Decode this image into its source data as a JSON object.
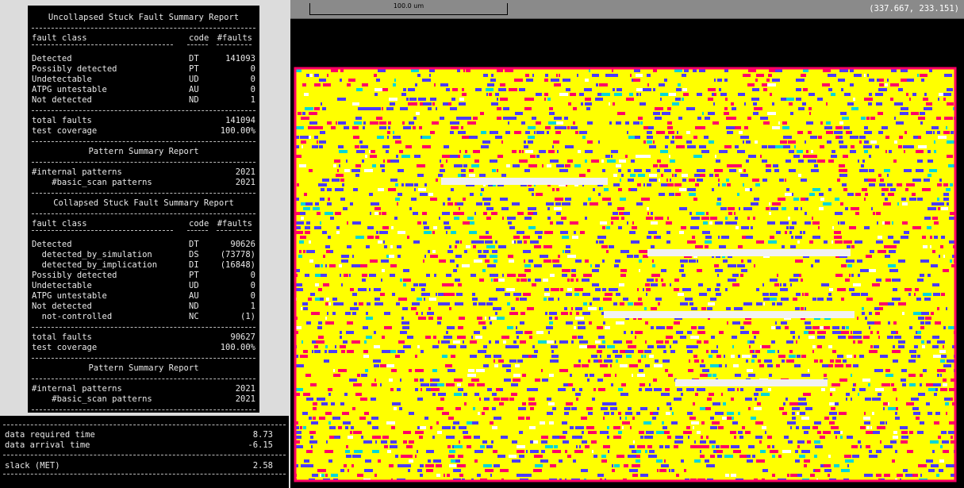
{
  "report": {
    "uncollapsed_title": "Uncollapsed Stuck Fault Summary Report",
    "header": {
      "fault_class": "fault class",
      "code": "code",
      "faults": "#faults"
    },
    "uncollapsed_rows": [
      {
        "label": "Detected",
        "code": "DT",
        "value": "141093"
      },
      {
        "label": "Possibly detected",
        "code": "PT",
        "value": "0"
      },
      {
        "label": "Undetectable",
        "code": "UD",
        "value": "0"
      },
      {
        "label": "ATPG untestable",
        "code": "AU",
        "value": "0"
      },
      {
        "label": "Not detected",
        "code": "ND",
        "value": "1"
      }
    ],
    "uncollapsed_totals": [
      {
        "label": "total faults",
        "value": "141094"
      },
      {
        "label": "test coverage",
        "value": "100.00%"
      }
    ],
    "pattern_title_1": "Pattern Summary Report",
    "patterns_1": [
      {
        "label": "#internal patterns",
        "value": "2021"
      },
      {
        "label": "    #basic_scan patterns",
        "value": "2021"
      }
    ],
    "collapsed_title": "Collapsed Stuck Fault Summary Report",
    "collapsed_rows": [
      {
        "label": "Detected",
        "code": "DT",
        "value": "90626"
      },
      {
        "label": "  detected_by_simulation",
        "code": "DS",
        "value": "(73778)"
      },
      {
        "label": "  detected_by_implication",
        "code": "DI",
        "value": "(16848)"
      },
      {
        "label": "Possibly detected",
        "code": "PT",
        "value": "0"
      },
      {
        "label": "Undetectable",
        "code": "UD",
        "value": "0"
      },
      {
        "label": "ATPG untestable",
        "code": "AU",
        "value": "0"
      },
      {
        "label": "Not detected",
        "code": "ND",
        "value": "1"
      },
      {
        "label": "  not-controlled",
        "code": "NC",
        "value": "(1)"
      }
    ],
    "collapsed_totals": [
      {
        "label": "total faults",
        "value": "90627"
      },
      {
        "label": "test coverage",
        "value": "100.00%"
      }
    ],
    "pattern_title_2": "Pattern Summary Report",
    "patterns_2": [
      {
        "label": "#internal patterns",
        "value": "2021"
      },
      {
        "label": "    #basic_scan patterns",
        "value": "2021"
      }
    ]
  },
  "slack": {
    "rows": [
      {
        "label": "data required time",
        "value": "8.73"
      },
      {
        "label": "data arrival time",
        "value": "-6.15"
      }
    ],
    "result": {
      "label": "slack (MET)",
      "value": "2.58"
    }
  },
  "viewer": {
    "scale_label": "100.0 um",
    "coordinates": "(337.667, 233.151)",
    "colors": {
      "cells": "#ffff00",
      "metal_a": "#ff0066",
      "metal_b": "#4b3bff",
      "accent": "#00d8d8"
    }
  }
}
